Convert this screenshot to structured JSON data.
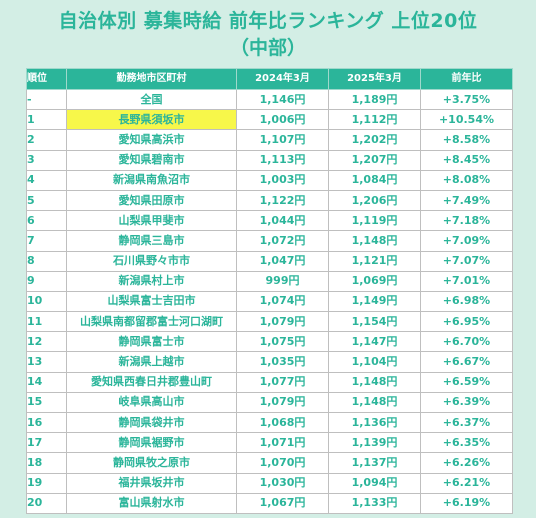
{
  "title": "自治体別 募集時給 前年比ランキング 上位20位",
  "subtitle": "（中部）",
  "headers": {
    "rank": "順位",
    "municipality": "勤務地市区町村",
    "y2024": "2024年3月",
    "y2025": "2025年3月",
    "yoy": "前年比"
  },
  "rows": [
    {
      "rank": "-",
      "name": "全国",
      "v2024": "1,146円",
      "v2025": "1,189円",
      "yoy": "+3.75%"
    },
    {
      "rank": "1",
      "name": "長野県須坂市",
      "v2024": "1,006円",
      "v2025": "1,112円",
      "yoy": "+10.54%",
      "highlight": true
    },
    {
      "rank": "2",
      "name": "愛知県高浜市",
      "v2024": "1,107円",
      "v2025": "1,202円",
      "yoy": "+8.58%"
    },
    {
      "rank": "3",
      "name": "愛知県碧南市",
      "v2024": "1,113円",
      "v2025": "1,207円",
      "yoy": "+8.45%"
    },
    {
      "rank": "4",
      "name": "新潟県南魚沼市",
      "v2024": "1,003円",
      "v2025": "1,084円",
      "yoy": "+8.08%"
    },
    {
      "rank": "5",
      "name": "愛知県田原市",
      "v2024": "1,122円",
      "v2025": "1,206円",
      "yoy": "+7.49%"
    },
    {
      "rank": "6",
      "name": "山梨県甲斐市",
      "v2024": "1,044円",
      "v2025": "1,119円",
      "yoy": "+7.18%"
    },
    {
      "rank": "7",
      "name": "静岡県三島市",
      "v2024": "1,072円",
      "v2025": "1,148円",
      "yoy": "+7.09%"
    },
    {
      "rank": "8",
      "name": "石川県野々市市",
      "v2024": "1,047円",
      "v2025": "1,121円",
      "yoy": "+7.07%"
    },
    {
      "rank": "9",
      "name": "新潟県村上市",
      "v2024": "999円",
      "v2025": "1,069円",
      "yoy": "+7.01%"
    },
    {
      "rank": "10",
      "name": "山梨県富士吉田市",
      "v2024": "1,074円",
      "v2025": "1,149円",
      "yoy": "+6.98%"
    },
    {
      "rank": "11",
      "name": "山梨県南都留郡富士河口湖町",
      "v2024": "1,079円",
      "v2025": "1,154円",
      "yoy": "+6.95%"
    },
    {
      "rank": "12",
      "name": "静岡県富士市",
      "v2024": "1,075円",
      "v2025": "1,147円",
      "yoy": "+6.70%"
    },
    {
      "rank": "13",
      "name": "新潟県上越市",
      "v2024": "1,035円",
      "v2025": "1,104円",
      "yoy": "+6.67%"
    },
    {
      "rank": "14",
      "name": "愛知県西春日井郡豊山町",
      "v2024": "1,077円",
      "v2025": "1,148円",
      "yoy": "+6.59%"
    },
    {
      "rank": "15",
      "name": "岐阜県高山市",
      "v2024": "1,079円",
      "v2025": "1,148円",
      "yoy": "+6.39%"
    },
    {
      "rank": "16",
      "name": "静岡県袋井市",
      "v2024": "1,068円",
      "v2025": "1,136円",
      "yoy": "+6.37%"
    },
    {
      "rank": "17",
      "name": "静岡県裾野市",
      "v2024": "1,071円",
      "v2025": "1,139円",
      "yoy": "+6.35%"
    },
    {
      "rank": "18",
      "name": "静岡県牧之原市",
      "v2024": "1,070円",
      "v2025": "1,137円",
      "yoy": "+6.26%"
    },
    {
      "rank": "19",
      "name": "福井県坂井市",
      "v2024": "1,030円",
      "v2025": "1,094円",
      "yoy": "+6.21%"
    },
    {
      "rank": "20",
      "name": "富山県射水市",
      "v2024": "1,067円",
      "v2025": "1,133円",
      "yoy": "+6.19%"
    }
  ],
  "colors": {
    "background": "#d3eee5",
    "accent": "#2bb59a",
    "highlight": "#f7f74a"
  }
}
